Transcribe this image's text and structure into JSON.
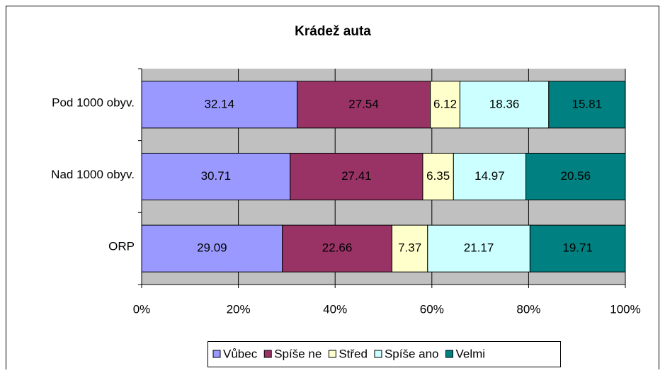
{
  "chart_data": {
    "type": "stacked_barh",
    "title": "Krádež auta",
    "categories": [
      "Pod 1000 obyv.",
      "Nad 1000 obyv.",
      "ORP"
    ],
    "series": [
      {
        "name": "Vůbec",
        "color": "#9999ff",
        "values": [
          32.14,
          30.71,
          29.09
        ]
      },
      {
        "name": "Spíše ne",
        "color": "#993366",
        "values": [
          27.54,
          27.41,
          22.66
        ]
      },
      {
        "name": "Střed",
        "color": "#ffffcc",
        "values": [
          6.12,
          6.35,
          7.37
        ]
      },
      {
        "name": "Spíše ano",
        "color": "#ccffff",
        "values": [
          18.36,
          14.97,
          21.17
        ]
      },
      {
        "name": "Velmi",
        "color": "#008080",
        "values": [
          15.81,
          20.56,
          19.71
        ]
      }
    ],
    "xlim": [
      0,
      100
    ],
    "xticks": [
      {
        "value": 0,
        "label": "0%"
      },
      {
        "value": 20,
        "label": "20%"
      },
      {
        "value": 40,
        "label": "40%"
      },
      {
        "value": 60,
        "label": "60%"
      },
      {
        "value": 80,
        "label": "80%"
      },
      {
        "value": 100,
        "label": "100%"
      }
    ],
    "grid": true,
    "legend": "bottom"
  }
}
